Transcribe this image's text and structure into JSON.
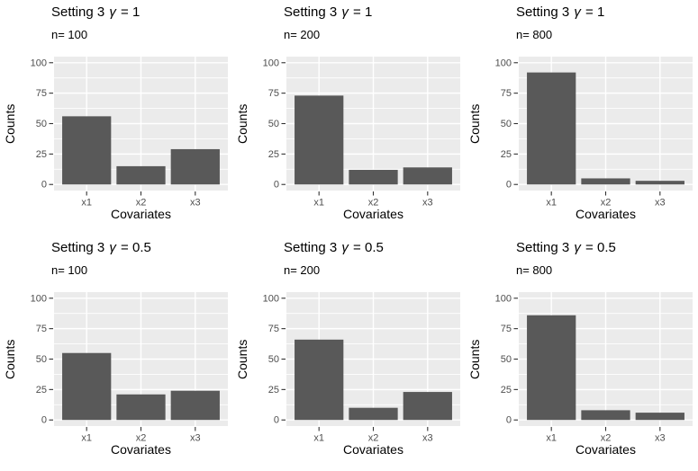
{
  "colors": {
    "background": "#FFFFFF",
    "bar": "#595959",
    "panel_bg": "#EBEBEB",
    "grid": "#FFFFFF",
    "axis_text": "#4D4D4D",
    "axis_title": "#000000",
    "tick_mark": "#333333"
  },
  "chart_data": [
    {
      "type": "bar",
      "title": {
        "prefix": "Setting 3 ",
        "gamma": "γ",
        "suffix": " = 1"
      },
      "subtitle": "n= 100",
      "categories": [
        "x1",
        "x2",
        "x3"
      ],
      "values": [
        56,
        15,
        29
      ],
      "xlabel": "Covariates",
      "ylabel": "Counts",
      "ylim": [
        0,
        100
      ],
      "yticks": [
        0,
        25,
        50,
        75,
        100
      ],
      "grid": "major and minor horizontal, major vertical",
      "legend": "none"
    },
    {
      "type": "bar",
      "title": {
        "prefix": "Setting 3 ",
        "gamma": "γ",
        "suffix": " = 1"
      },
      "subtitle": "n= 200",
      "categories": [
        "x1",
        "x2",
        "x3"
      ],
      "values": [
        73,
        12,
        14
      ],
      "xlabel": "Covariates",
      "ylabel": "Counts",
      "ylim": [
        0,
        100
      ],
      "yticks": [
        0,
        25,
        50,
        75,
        100
      ],
      "grid": "major and minor horizontal, major vertical",
      "legend": "none"
    },
    {
      "type": "bar",
      "title": {
        "prefix": "Setting 3 ",
        "gamma": "γ",
        "suffix": " = 1"
      },
      "subtitle": "n= 800",
      "categories": [
        "x1",
        "x2",
        "x3"
      ],
      "values": [
        92,
        5,
        3
      ],
      "xlabel": "Covariates",
      "ylabel": "Counts",
      "ylim": [
        0,
        100
      ],
      "yticks": [
        0,
        25,
        50,
        75,
        100
      ],
      "grid": "major and minor horizontal, major vertical",
      "legend": "none"
    },
    {
      "type": "bar",
      "title": {
        "prefix": "Setting 3 ",
        "gamma": "γ",
        "suffix": " = 0.5"
      },
      "subtitle": "n= 100",
      "categories": [
        "x1",
        "x2",
        "x3"
      ],
      "values": [
        55,
        21,
        24
      ],
      "xlabel": "Covariates",
      "ylabel": "Counts",
      "ylim": [
        0,
        100
      ],
      "yticks": [
        0,
        25,
        50,
        75,
        100
      ],
      "grid": "major and minor horizontal, major vertical",
      "legend": "none"
    },
    {
      "type": "bar",
      "title": {
        "prefix": "Setting 3 ",
        "gamma": "γ",
        "suffix": " = 0.5"
      },
      "subtitle": "n= 200",
      "categories": [
        "x1",
        "x2",
        "x3"
      ],
      "values": [
        66,
        10,
        23
      ],
      "xlabel": "Covariates",
      "ylabel": "Counts",
      "ylim": [
        0,
        100
      ],
      "yticks": [
        0,
        25,
        50,
        75,
        100
      ],
      "grid": "major and minor horizontal, major vertical",
      "legend": "none"
    },
    {
      "type": "bar",
      "title": {
        "prefix": "Setting 3 ",
        "gamma": "γ",
        "suffix": " = 0.5"
      },
      "subtitle": "n= 800",
      "categories": [
        "x1",
        "x2",
        "x3"
      ],
      "values": [
        86,
        8,
        6
      ],
      "xlabel": "Covariates",
      "ylabel": "Counts",
      "ylim": [
        0,
        100
      ],
      "yticks": [
        0,
        25,
        50,
        75,
        100
      ],
      "grid": "major and minor horizontal, major vertical",
      "legend": "none"
    }
  ]
}
